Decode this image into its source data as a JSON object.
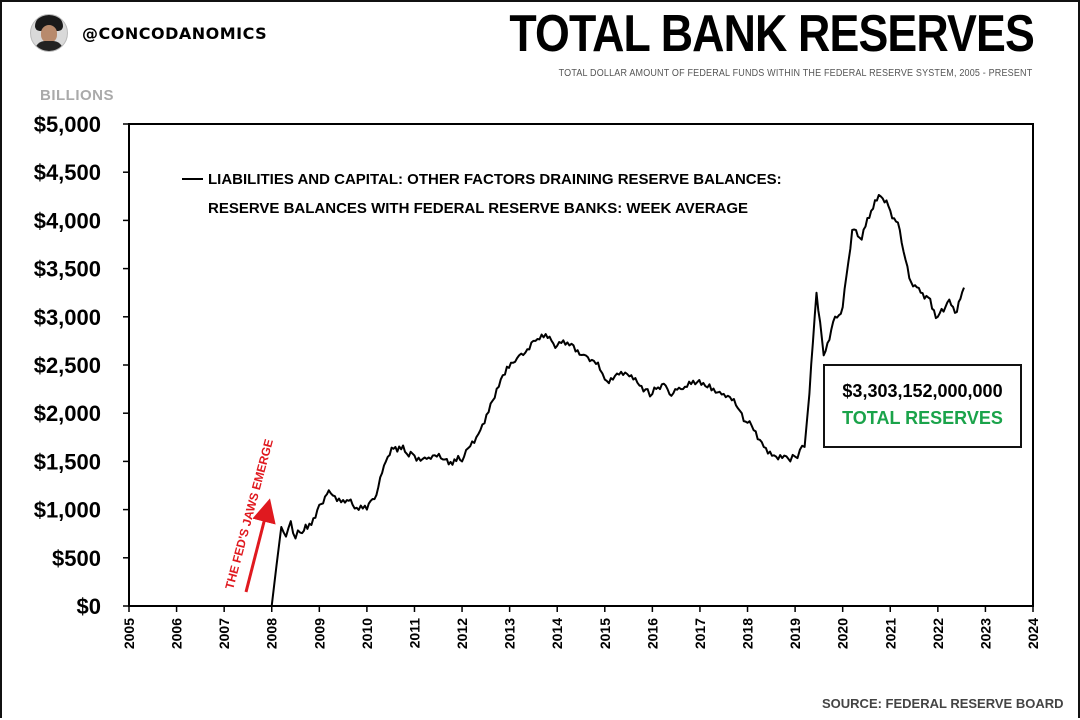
{
  "header": {
    "handle": "@CONCODANOMICS",
    "title": "TOTAL BANK RESERVES",
    "subtitle": "TOTAL DOLLAR AMOUNT OF FEDERAL FUNDS WITHIN THE FEDERAL RESERVE SYSTEM, 2005 - PRESENT",
    "avatar_icon": "person-avatar-icon"
  },
  "chart_data": {
    "type": "line",
    "title": "TOTAL BANK RESERVES",
    "ylabel": "BILLIONS",
    "xlabel": "",
    "xlim": [
      2005,
      2024
    ],
    "ylim": [
      0,
      5000
    ],
    "x_ticks": [
      "2005",
      "2006",
      "2007",
      "2008",
      "2009",
      "2010",
      "2011",
      "2012",
      "2013",
      "2014",
      "2015",
      "2016",
      "2017",
      "2018",
      "2019",
      "2020",
      "2021",
      "2022",
      "2023",
      "2024"
    ],
    "y_ticks": [
      "$0",
      "$500",
      "$1,000",
      "$1,500",
      "$2,000",
      "$2,500",
      "$3,000",
      "$3,500",
      "$4,000",
      "$4,500",
      "$5,000"
    ],
    "legend_position": "top-left",
    "grid": false,
    "series": [
      {
        "name": "LIABILITIES AND CAPITAL: OTHER FACTORS DRAINING RESERVE BALANCES: RESERVE BALANCES WITH FEDERAL RESERVE BANKS: WEEK AVERAGE",
        "legend_lines": [
          "LIABILITIES AND CAPITAL: OTHER FACTORS DRAINING RESERVE BALANCES:",
          "RESERVE BALANCES WITH FEDERAL RESERVE BANKS: WEEK AVERAGE"
        ],
        "color": "#000000",
        "x": [
          2008.0,
          2008.1,
          2008.2,
          2008.3,
          2008.4,
          2008.5,
          2008.6,
          2008.75,
          2009.0,
          2009.2,
          2009.5,
          2009.7,
          2010.0,
          2010.2,
          2010.4,
          2010.6,
          2010.8,
          2011.0,
          2011.3,
          2011.6,
          2012.0,
          2012.3,
          2012.6,
          2012.9,
          2013.2,
          2013.5,
          2013.8,
          2014.0,
          2014.3,
          2014.6,
          2014.9,
          2015.0,
          2015.3,
          2015.6,
          2015.9,
          2016.0,
          2016.2,
          2016.4,
          2016.6,
          2016.9,
          2017.2,
          2017.5,
          2017.8,
          2018.0,
          2018.3,
          2018.6,
          2018.9,
          2019.0,
          2019.1,
          2019.2,
          2019.3,
          2019.45,
          2019.6,
          2019.8,
          2020.0,
          2020.2,
          2020.4,
          2020.6,
          2020.8,
          2021.0,
          2021.2,
          2021.4,
          2021.6,
          2021.8,
          2022.0,
          2022.2,
          2022.4,
          2022.55
        ],
        "values": [
          0,
          420,
          820,
          720,
          880,
          700,
          760,
          800,
          1050,
          1200,
          1100,
          1050,
          1000,
          1150,
          1500,
          1650,
          1600,
          1560,
          1540,
          1520,
          1500,
          1750,
          2100,
          2400,
          2600,
          2750,
          2780,
          2700,
          2720,
          2600,
          2450,
          2350,
          2400,
          2350,
          2250,
          2200,
          2300,
          2180,
          2250,
          2300,
          2300,
          2200,
          2050,
          1900,
          1700,
          1550,
          1500,
          1550,
          1620,
          1650,
          2200,
          3250,
          2600,
          2950,
          3100,
          3900,
          3800,
          4100,
          4250,
          4100,
          3900,
          3400,
          3300,
          3200,
          3000,
          3150,
          3050,
          3303
        ]
      }
    ],
    "annotations": [
      {
        "text": "THE FED'S JAWS EMERGE",
        "color": "#e0191f"
      }
    ]
  },
  "callout": {
    "amount": "$3,303,152,000,000",
    "label": "TOTAL RESERVES",
    "label_color": "#1aa34a"
  },
  "source": "SOURCE: FEDERAL RESERVE BOARD"
}
